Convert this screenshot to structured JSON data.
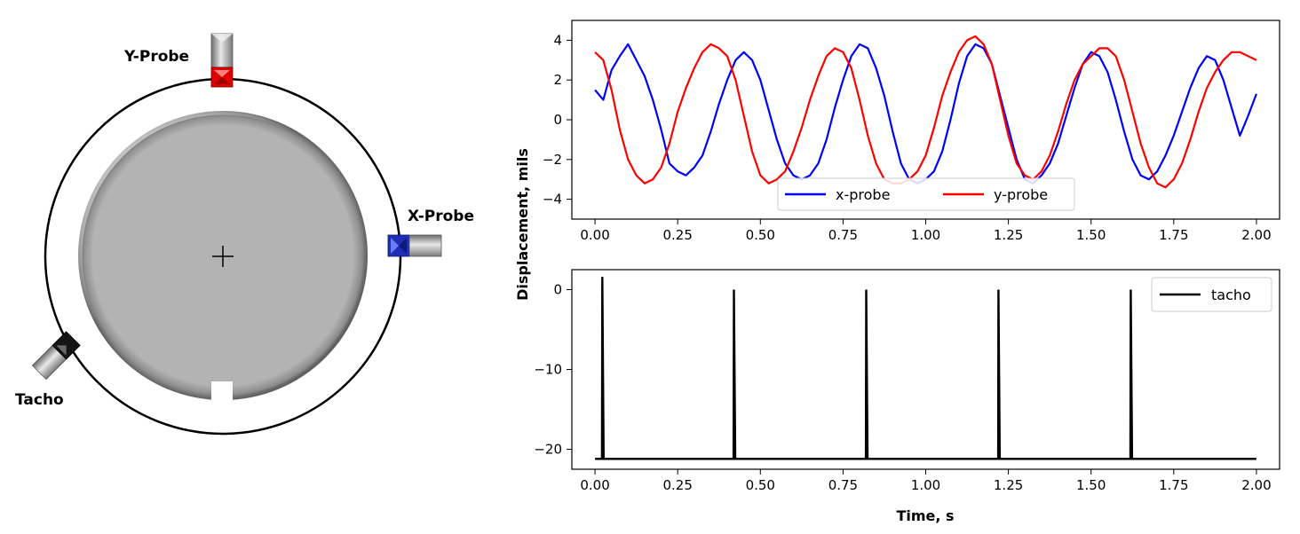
{
  "diagram": {
    "labels": {
      "y_probe": "Y-Probe",
      "x_probe": "X-Probe",
      "tacho": "Tacho"
    },
    "colors": {
      "y_probe": "#ff0000",
      "x_probe": "#1f2fb4",
      "tacho": "#111111",
      "rotor": "#b3b3b3"
    }
  },
  "chart_data": [
    {
      "type": "line",
      "xlim": [
        -0.07,
        2.07
      ],
      "ylim": [
        -5,
        5
      ],
      "xticks": [
        0.0,
        0.25,
        0.5,
        0.75,
        1.0,
        1.25,
        1.5,
        1.75,
        2.0
      ],
      "xtick_labels": [
        "0.00",
        "0.25",
        "0.50",
        "0.75",
        "1.00",
        "1.25",
        "1.50",
        "1.75",
        "2.00"
      ],
      "yticks": [
        -4,
        -2,
        0,
        2,
        4
      ],
      "ytick_labels": [
        "−4",
        "−2",
        "0",
        "2",
        "4"
      ],
      "grid": false,
      "legend": {
        "placement": "lower center",
        "ncol": 2
      },
      "series": [
        {
          "name": "x-probe",
          "color": "#0000ff",
          "x": [
            0.0,
            0.025,
            0.05,
            0.075,
            0.1,
            0.125,
            0.15,
            0.175,
            0.2,
            0.225,
            0.25,
            0.275,
            0.3,
            0.325,
            0.35,
            0.375,
            0.4,
            0.425,
            0.45,
            0.475,
            0.5,
            0.525,
            0.55,
            0.575,
            0.6,
            0.625,
            0.65,
            0.675,
            0.7,
            0.725,
            0.75,
            0.775,
            0.8,
            0.825,
            0.85,
            0.875,
            0.9,
            0.925,
            0.95,
            0.975,
            1.0,
            1.025,
            1.05,
            1.075,
            1.1,
            1.125,
            1.15,
            1.175,
            1.2,
            1.225,
            1.25,
            1.275,
            1.3,
            1.325,
            1.35,
            1.375,
            1.4,
            1.425,
            1.45,
            1.475,
            1.5,
            1.525,
            1.55,
            1.575,
            1.6,
            1.625,
            1.65,
            1.675,
            1.7,
            1.725,
            1.75,
            1.775,
            1.8,
            1.825,
            1.85,
            1.875,
            1.9,
            1.925,
            1.95,
            1.975,
            2.0
          ],
          "values": [
            1.5,
            1.0,
            2.5,
            3.2,
            3.8,
            3.0,
            2.2,
            1.0,
            -0.5,
            -2.2,
            -2.6,
            -2.8,
            -2.4,
            -1.8,
            -0.6,
            0.8,
            2.0,
            3.0,
            3.4,
            3.0,
            2.0,
            0.5,
            -1.0,
            -2.2,
            -2.8,
            -3.0,
            -2.8,
            -2.2,
            -1.0,
            0.6,
            2.0,
            3.2,
            3.8,
            3.6,
            2.6,
            1.2,
            -0.6,
            -2.2,
            -3.0,
            -3.2,
            -3.0,
            -2.6,
            -1.6,
            0.0,
            1.8,
            3.2,
            3.8,
            3.6,
            2.8,
            1.2,
            -0.4,
            -2.0,
            -3.0,
            -3.2,
            -2.8,
            -2.2,
            -1.2,
            0.2,
            1.6,
            2.8,
            3.4,
            3.2,
            2.4,
            1.0,
            -0.6,
            -2.0,
            -2.8,
            -3.0,
            -2.6,
            -1.8,
            -0.8,
            0.4,
            1.6,
            2.6,
            3.2,
            3.0,
            2.0,
            0.6,
            -0.8,
            0.2,
            1.3
          ]
        },
        {
          "name": "y-probe",
          "color": "#ff0000",
          "x": [
            0.0,
            0.025,
            0.05,
            0.075,
            0.1,
            0.125,
            0.15,
            0.175,
            0.2,
            0.225,
            0.25,
            0.275,
            0.3,
            0.325,
            0.35,
            0.375,
            0.4,
            0.425,
            0.45,
            0.475,
            0.5,
            0.525,
            0.55,
            0.575,
            0.6,
            0.625,
            0.65,
            0.675,
            0.7,
            0.725,
            0.75,
            0.775,
            0.8,
            0.825,
            0.85,
            0.875,
            0.9,
            0.925,
            0.95,
            0.975,
            1.0,
            1.025,
            1.05,
            1.075,
            1.1,
            1.125,
            1.15,
            1.175,
            1.2,
            1.225,
            1.25,
            1.275,
            1.3,
            1.325,
            1.35,
            1.375,
            1.4,
            1.425,
            1.45,
            1.475,
            1.5,
            1.525,
            1.55,
            1.575,
            1.6,
            1.625,
            1.65,
            1.675,
            1.7,
            1.725,
            1.75,
            1.775,
            1.8,
            1.825,
            1.85,
            1.875,
            1.9,
            1.925,
            1.95,
            1.975,
            2.0
          ],
          "values": [
            3.4,
            3.0,
            1.5,
            -0.5,
            -2.0,
            -2.8,
            -3.2,
            -3.0,
            -2.4,
            -1.2,
            0.4,
            1.6,
            2.6,
            3.4,
            3.8,
            3.6,
            3.2,
            2.0,
            0.2,
            -1.6,
            -2.8,
            -3.2,
            -3.0,
            -2.6,
            -1.6,
            -0.4,
            1.0,
            2.2,
            3.2,
            3.6,
            3.4,
            2.6,
            1.0,
            -0.8,
            -2.2,
            -3.0,
            -3.2,
            -3.2,
            -3.0,
            -2.6,
            -1.8,
            -0.4,
            1.2,
            2.4,
            3.4,
            4.0,
            4.2,
            3.8,
            2.8,
            1.0,
            -0.8,
            -2.2,
            -2.8,
            -3.0,
            -2.6,
            -1.8,
            -0.6,
            0.8,
            2.0,
            2.8,
            3.2,
            3.6,
            3.6,
            3.2,
            2.0,
            0.4,
            -1.2,
            -2.4,
            -3.2,
            -3.4,
            -3.0,
            -2.2,
            -1.0,
            0.4,
            1.6,
            2.4,
            3.0,
            3.4,
            3.4,
            3.2,
            3.0
          ]
        }
      ]
    },
    {
      "type": "line",
      "xlabel": "Time, s",
      "xlim": [
        -0.07,
        2.07
      ],
      "ylim": [
        -22.5,
        2.5
      ],
      "xticks": [
        0.0,
        0.25,
        0.5,
        0.75,
        1.0,
        1.25,
        1.5,
        1.75,
        2.0
      ],
      "xtick_labels": [
        "0.00",
        "0.25",
        "0.50",
        "0.75",
        "1.00",
        "1.25",
        "1.50",
        "1.75",
        "2.00"
      ],
      "yticks": [
        -20,
        -10,
        0
      ],
      "ytick_labels": [
        "−20",
        "−10",
        "0"
      ],
      "grid": false,
      "legend": {
        "placement": "upper right"
      },
      "series": [
        {
          "name": "tacho",
          "color": "#000000",
          "baseline": -21.2,
          "pulse_times": [
            0.022,
            0.42,
            0.82,
            1.22,
            1.62
          ],
          "pulse_peaks": [
            1.6,
            0.0,
            0.0,
            0.0,
            0.0
          ],
          "x_range": [
            0.0,
            2.0
          ]
        }
      ]
    }
  ],
  "shared_ylabel": "Displacement, mils"
}
